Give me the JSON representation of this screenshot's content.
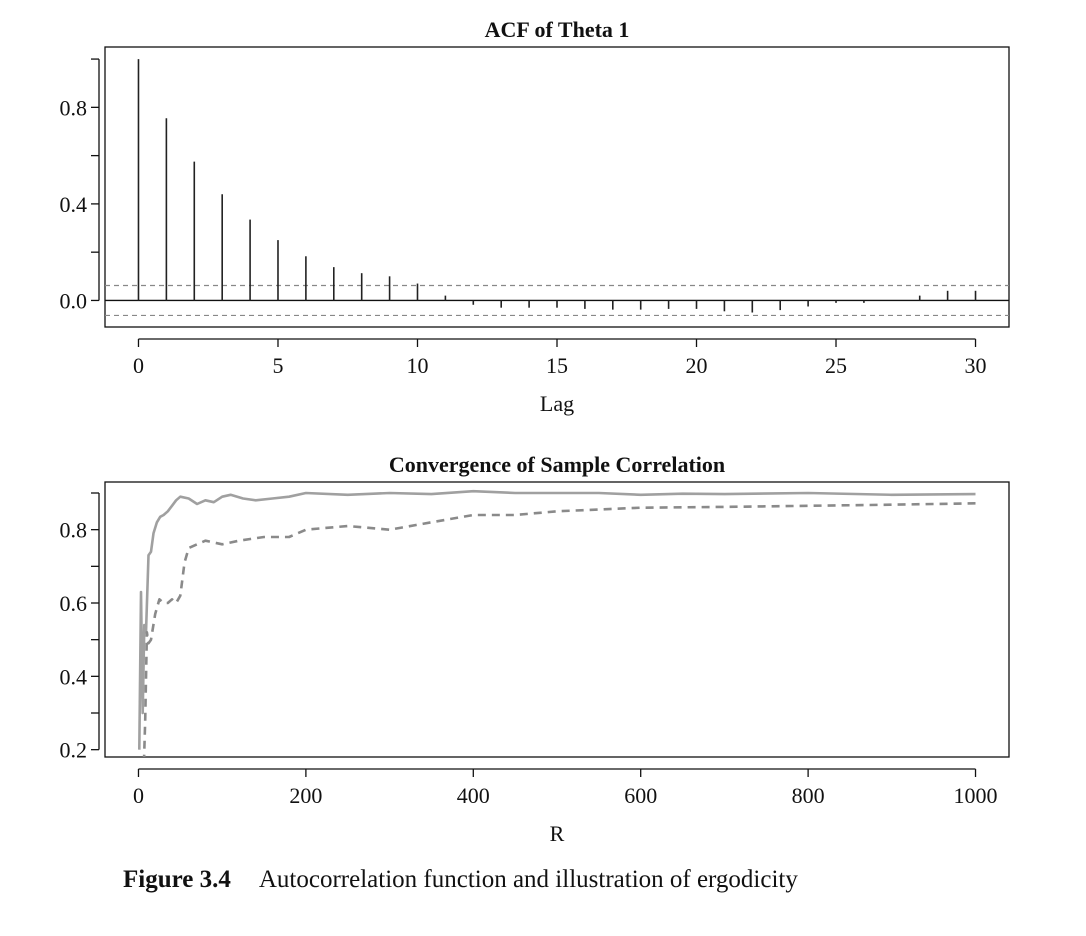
{
  "chart_data": [
    {
      "type": "bar",
      "title": "ACF of Theta 1",
      "xlabel": "Lag",
      "ylabel": "",
      "xlim": [
        -1.2,
        31.2
      ],
      "ylim": [
        -0.11,
        1.05
      ],
      "xticks": [
        0,
        5,
        10,
        15,
        20,
        25,
        30
      ],
      "xtick_labels": [
        "0",
        "5",
        "10",
        "15",
        "20",
        "25",
        "30"
      ],
      "yticks": [
        0.0,
        0.2,
        0.4,
        0.6,
        0.8,
        1.0
      ],
      "ytick_labels": [
        "0.0",
        "0.4",
        "0.8"
      ],
      "ytick_label_values": [
        0.0,
        0.4,
        0.8
      ],
      "lags": [
        0,
        1,
        2,
        3,
        4,
        5,
        6,
        7,
        8,
        9,
        10,
        11,
        12,
        13,
        14,
        15,
        16,
        17,
        18,
        19,
        20,
        21,
        22,
        23,
        24,
        25,
        26,
        27,
        28,
        29,
        30
      ],
      "values": [
        1.0,
        0.755,
        0.575,
        0.44,
        0.335,
        0.25,
        0.183,
        0.138,
        0.113,
        0.1,
        0.07,
        0.02,
        -0.018,
        -0.03,
        -0.03,
        -0.03,
        -0.035,
        -0.038,
        -0.038,
        -0.035,
        -0.035,
        -0.045,
        -0.05,
        -0.04,
        -0.025,
        -0.01,
        -0.01,
        0.0,
        0.02,
        0.04,
        0.04
      ],
      "confidence_band": 0.062,
      "grid": false,
      "colors": {
        "bars": "#222222",
        "band": "#888888",
        "axis": "#111111"
      }
    },
    {
      "type": "line",
      "title": "Convergence of Sample Correlation",
      "xlabel": "R",
      "ylabel": "",
      "xlim": [
        -40,
        1040
      ],
      "ylim": [
        0.18,
        0.93
      ],
      "xticks": [
        0,
        200,
        400,
        600,
        800,
        1000
      ],
      "xtick_labels": [
        "0",
        "200",
        "400",
        "600",
        "800",
        "1000"
      ],
      "yticks": [
        0.2,
        0.3,
        0.4,
        0.5,
        0.6,
        0.7,
        0.8,
        0.9
      ],
      "ytick_labels": [
        "0.2",
        "0.4",
        "0.6",
        "0.8"
      ],
      "ytick_label_values": [
        0.2,
        0.4,
        0.6,
        0.8
      ],
      "grid": false,
      "series": [
        {
          "style": "solid",
          "color": "#a0a0a0",
          "x": [
            1,
            3,
            5,
            7,
            9,
            12,
            15,
            18,
            22,
            26,
            30,
            35,
            40,
            45,
            50,
            60,
            70,
            80,
            90,
            100,
            110,
            125,
            140,
            160,
            180,
            200,
            250,
            300,
            350,
            400,
            450,
            500,
            550,
            600,
            650,
            700,
            800,
            900,
            1000
          ],
          "y": [
            0.2,
            0.63,
            0.3,
            0.54,
            0.52,
            0.73,
            0.74,
            0.79,
            0.82,
            0.835,
            0.84,
            0.85,
            0.865,
            0.88,
            0.89,
            0.885,
            0.87,
            0.88,
            0.875,
            0.89,
            0.895,
            0.885,
            0.88,
            0.885,
            0.89,
            0.9,
            0.895,
            0.9,
            0.897,
            0.905,
            0.9,
            0.9,
            0.9,
            0.895,
            0.898,
            0.897,
            0.9,
            0.895,
            0.897
          ]
        },
        {
          "style": "dashed",
          "color": "#8a8a8a",
          "x": [
            5,
            8,
            10,
            12,
            15,
            20,
            25,
            30,
            35,
            40,
            45,
            50,
            55,
            60,
            70,
            80,
            100,
            120,
            150,
            180,
            200,
            250,
            300,
            350,
            400,
            450,
            500,
            550,
            600,
            700,
            800,
            900,
            1000
          ],
          "y": [
            0.05,
            0.28,
            0.52,
            0.49,
            0.5,
            0.57,
            0.61,
            0.6,
            0.6,
            0.61,
            0.6,
            0.62,
            0.71,
            0.75,
            0.76,
            0.77,
            0.76,
            0.77,
            0.78,
            0.78,
            0.8,
            0.81,
            0.8,
            0.82,
            0.84,
            0.84,
            0.85,
            0.855,
            0.86,
            0.862,
            0.865,
            0.868,
            0.872
          ]
        }
      ],
      "colors": {
        "axis": "#111111"
      }
    }
  ],
  "caption": {
    "figure_number": "Figure 3.4",
    "text": "Autocorrelation function and illustration of ergodicity"
  }
}
